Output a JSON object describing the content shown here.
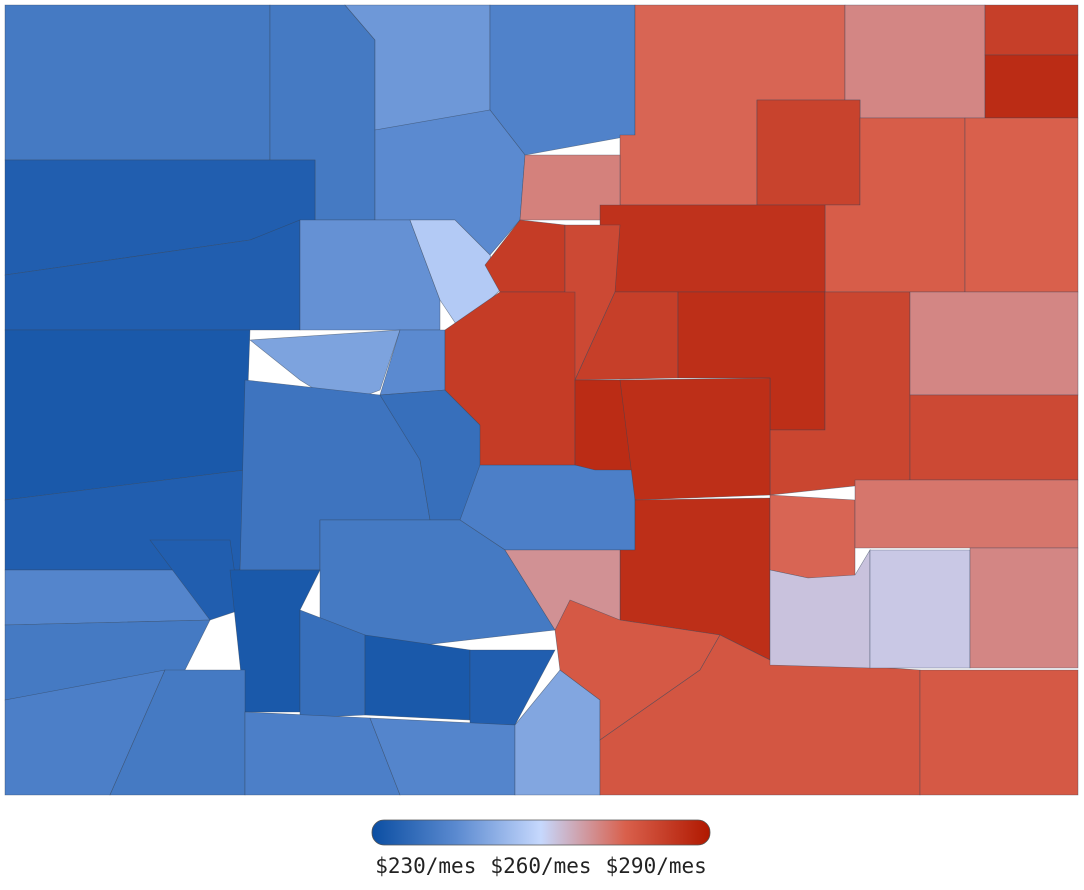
{
  "map": {
    "values": [
      232,
      232,
      242,
      235,
      238,
      222,
      222,
      240,
      256,
      220,
      245,
      238,
      222,
      230,
      228,
      234,
      232,
      236,
      222,
      220,
      228,
      220,
      222,
      232,
      234,
      232,
      234,
      236,
      246,
      281,
      276,
      275,
      292,
      298,
      291,
      283,
      282,
      293,
      296,
      289,
      293,
      292,
      297,
      290,
      275,
      289,
      298,
      297,
      297,
      273,
      284,
      285,
      284,
      281,
      278,
      264,
      263,
      275
    ],
    "scale": {
      "range": [
        216,
        304
      ],
      "colors": [
        "#0b4ea2",
        "#5b8ad0",
        "#c6d8fd",
        "#d9604c",
        "#b01800"
      ],
      "ticks": [
        {
          "value": 230,
          "label": "$230/mes"
        },
        {
          "value": 260,
          "label": "$260/mes"
        },
        {
          "value": 290,
          "label": "$290/mes"
        }
      ]
    }
  }
}
